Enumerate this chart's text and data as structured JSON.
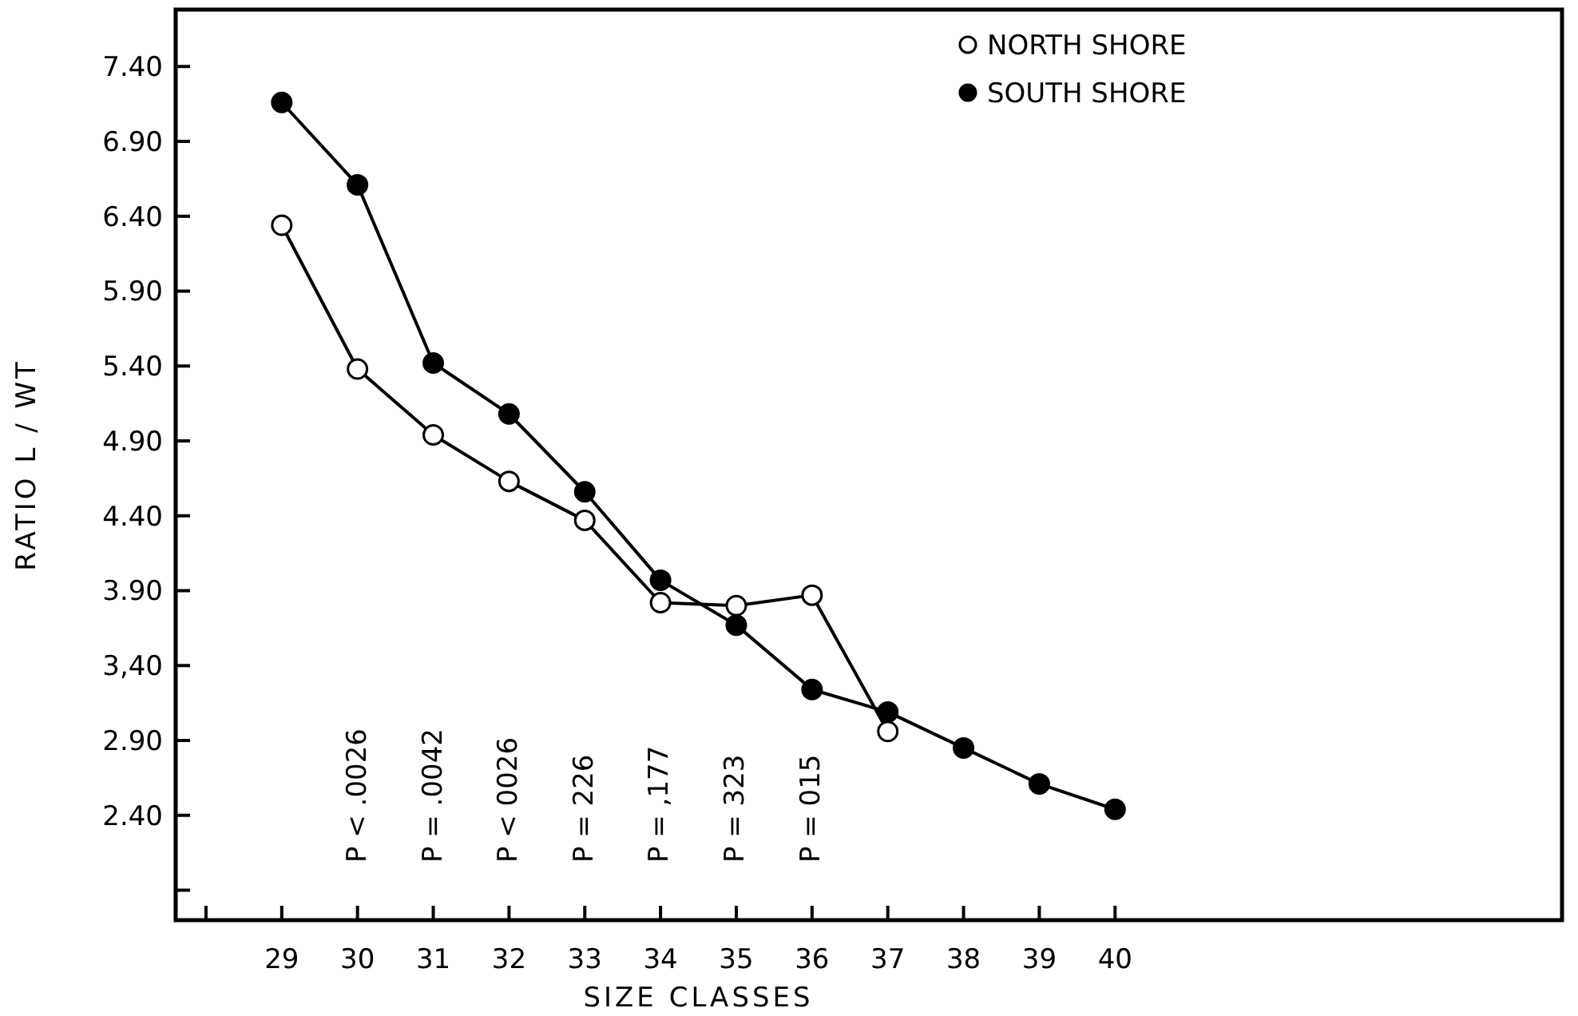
{
  "chart_data": {
    "type": "line",
    "xlabel": "SIZE CLASSES",
    "ylabel": "RATIO L / WT",
    "xlim": [
      27.6,
      45.9
    ],
    "xticks": [
      {
        "value": 28,
        "label": null
      },
      29,
      30,
      31,
      32,
      33,
      34,
      35,
      36,
      37,
      38,
      39,
      40
    ],
    "ylim": [
      1.7,
      7.78
    ],
    "yticks": [
      {
        "value": 1.9,
        "label": null
      },
      {
        "value": 2.4,
        "label": "2.40"
      },
      {
        "value": 2.9,
        "label": "2.90"
      },
      {
        "value": 3.4,
        "label": "3,40"
      },
      {
        "value": 3.9,
        "label": "3.90"
      },
      {
        "value": 4.4,
        "label": "4.40"
      },
      {
        "value": 4.9,
        "label": "4.90"
      },
      {
        "value": 5.4,
        "label": "5.40"
      },
      {
        "value": 5.9,
        "label": "5.90"
      },
      {
        "value": 6.4,
        "label": "6.40"
      },
      {
        "value": 6.9,
        "label": "6.90"
      },
      {
        "value": 7.4,
        "label": "7.40"
      }
    ],
    "grid": false,
    "legend": "top right",
    "marker": "circle",
    "line_style": "solid",
    "series": [
      {
        "name": "NORTH SHORE",
        "color": "#000000",
        "x": [
          29,
          30,
          31,
          32,
          33,
          34,
          35,
          36,
          37
        ],
        "values": [
          6.34,
          5.38,
          4.94,
          4.63,
          4.37,
          3.82,
          3.8,
          3.87,
          2.96
        ]
      },
      {
        "name": "SOUTH SHORE",
        "color": "#000000",
        "x": [
          29,
          30,
          31,
          32,
          33,
          34,
          35,
          36,
          37,
          38,
          39,
          40
        ],
        "values": [
          7.16,
          6.61,
          5.42,
          5.08,
          4.56,
          3.97,
          3.67,
          3.24,
          3.09,
          2.85,
          2.61,
          2.44
        ]
      }
    ],
    "annotations": [
      "P < .0026",
      "P = .0042",
      "P < 0026",
      "P = 226",
      "P = ,177",
      "P = 323",
      "P = 015"
    ]
  }
}
